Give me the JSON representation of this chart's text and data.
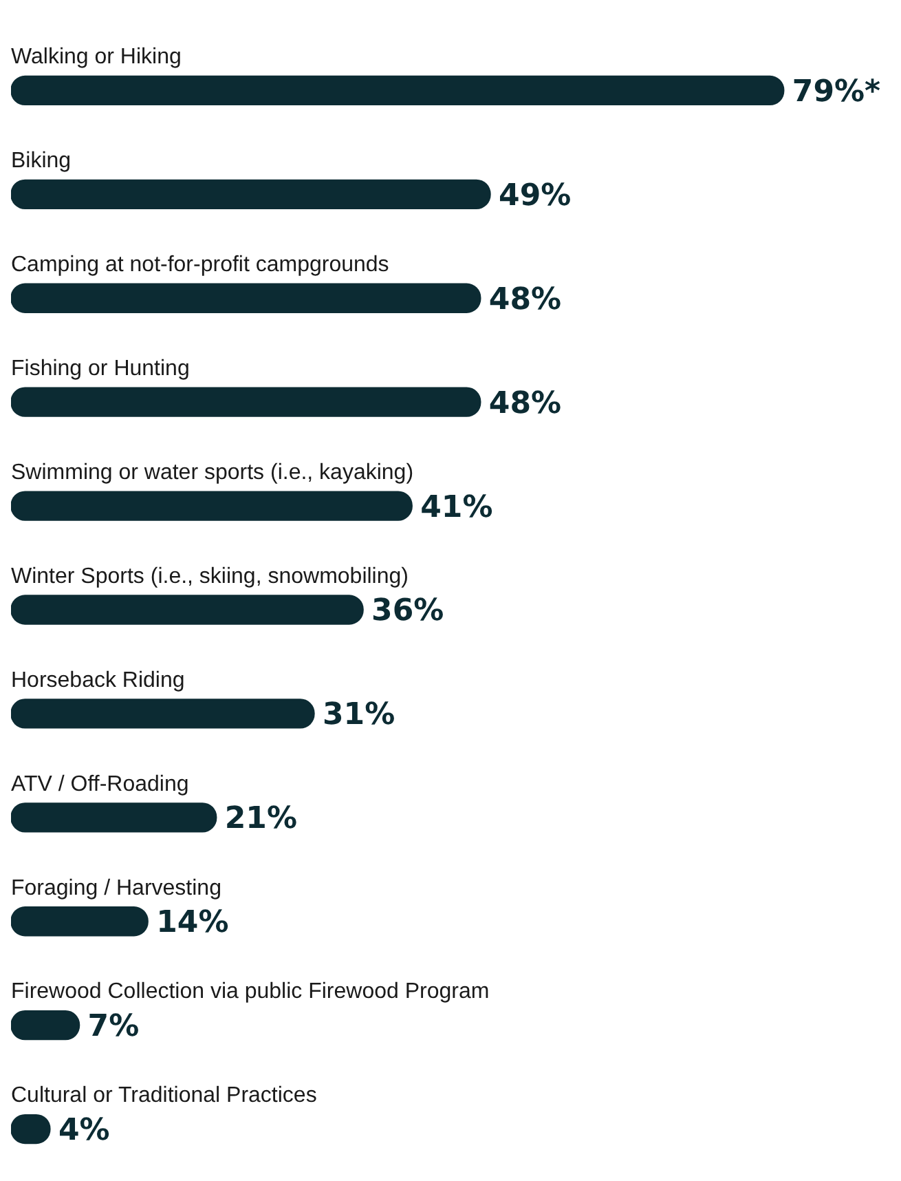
{
  "chart_data": {
    "type": "bar",
    "orientation": "horizontal",
    "categories": [
      "Walking or Hiking",
      "Biking",
      "Camping at not-for-profit campgrounds",
      "Fishing or Hunting",
      "Swimming or water sports (i.e., kayaking)",
      "Winter Sports (i.e., skiing, snowmobiling)",
      "Horseback Riding",
      "ATV / Off-Roading",
      "Foraging / Harvesting",
      "Firewood Collection via public Firewood Program",
      "Cultural or Traditional Practices"
    ],
    "values": [
      79,
      49,
      48,
      48,
      41,
      36,
      31,
      21,
      14,
      7,
      4
    ],
    "value_labels": [
      "79%*",
      "49%",
      "48%",
      "48%",
      "41%",
      "36%",
      "31%",
      "21%",
      "14%",
      "7%",
      "4%"
    ],
    "color": "#0c2b33",
    "tick_labels": false
  }
}
